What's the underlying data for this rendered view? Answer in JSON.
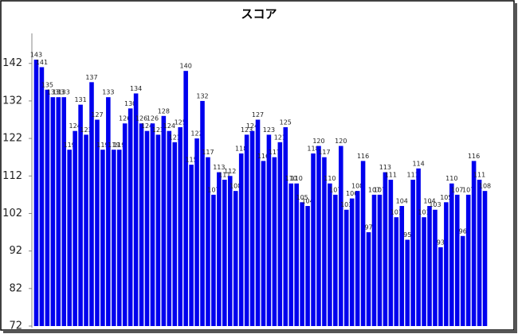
{
  "chart_data": {
    "type": "bar",
    "title": "スコア",
    "values": [
      143,
      141,
      135,
      133,
      133,
      133,
      119,
      124,
      131,
      123,
      137,
      127,
      119,
      133,
      119,
      119,
      126,
      130,
      134,
      126,
      124,
      126,
      123,
      128,
      124,
      121,
      125,
      140,
      115,
      122,
      132,
      117,
      107,
      113,
      111,
      112,
      108,
      118,
      123,
      124,
      127,
      116,
      123,
      117,
      121,
      125,
      110,
      110,
      105,
      104,
      118,
      120,
      117,
      110,
      107,
      120,
      103,
      106,
      108,
      116,
      97,
      107,
      107,
      113,
      111,
      101,
      104,
      95,
      111,
      114,
      101,
      104,
      103,
      93,
      105,
      110,
      107,
      96,
      107,
      116,
      111,
      108
    ],
    "color": "#0000ee",
    "ylim": [
      72,
      150
    ],
    "yticks": [
      72,
      82,
      92,
      102,
      112,
      122,
      132,
      142
    ],
    "grid": false
  }
}
